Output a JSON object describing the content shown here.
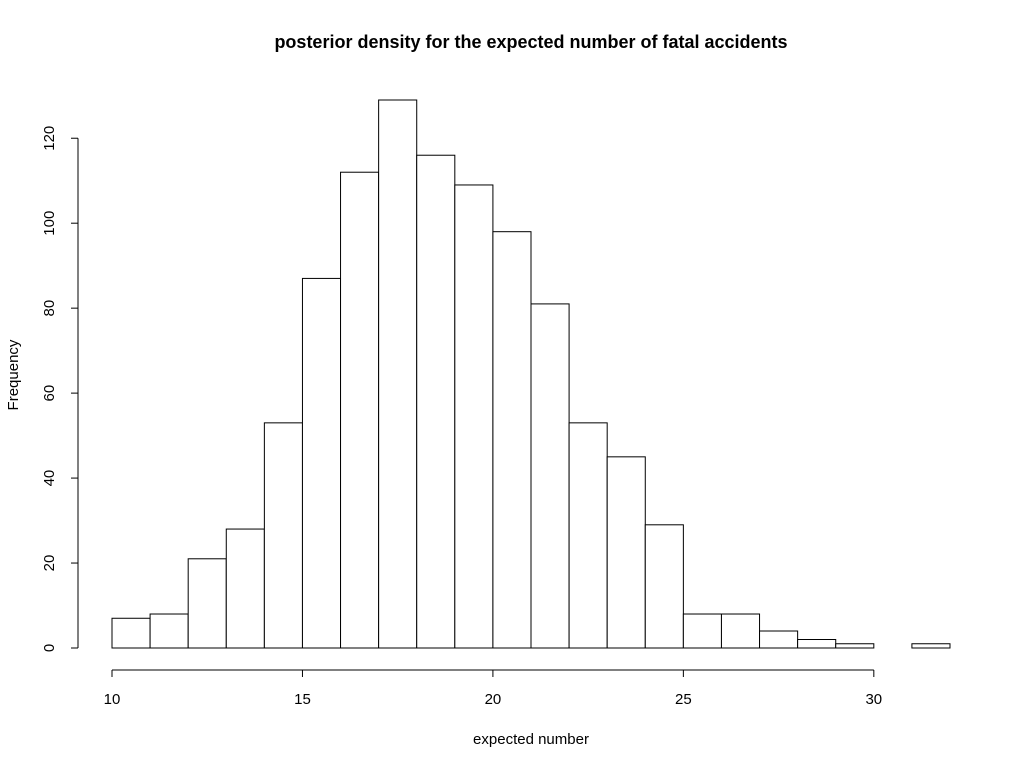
{
  "chart_data": {
    "type": "bar",
    "title": "posterior density for the expected number of fatal accidents",
    "xlabel": "expected number",
    "ylabel": "Frequency",
    "bin_edges": [
      10,
      11,
      12,
      13,
      14,
      15,
      16,
      17,
      18,
      19,
      20,
      21,
      22,
      23,
      24,
      25,
      26,
      27,
      28,
      29,
      30,
      31,
      32
    ],
    "values": [
      7,
      8,
      21,
      28,
      53,
      87,
      112,
      129,
      116,
      109,
      98,
      81,
      53,
      45,
      29,
      8,
      8,
      4,
      2,
      1,
      0,
      1
    ],
    "xlim": [
      10,
      32
    ],
    "ylim": [
      0,
      129
    ],
    "xticks": [
      10,
      15,
      20,
      25,
      30
    ],
    "yticks": [
      0,
      20,
      40,
      60,
      80,
      100,
      120
    ],
    "grid": false,
    "legend": "none",
    "colors": {
      "bar_fill": "#ffffff",
      "bar_stroke": "#000000"
    }
  }
}
